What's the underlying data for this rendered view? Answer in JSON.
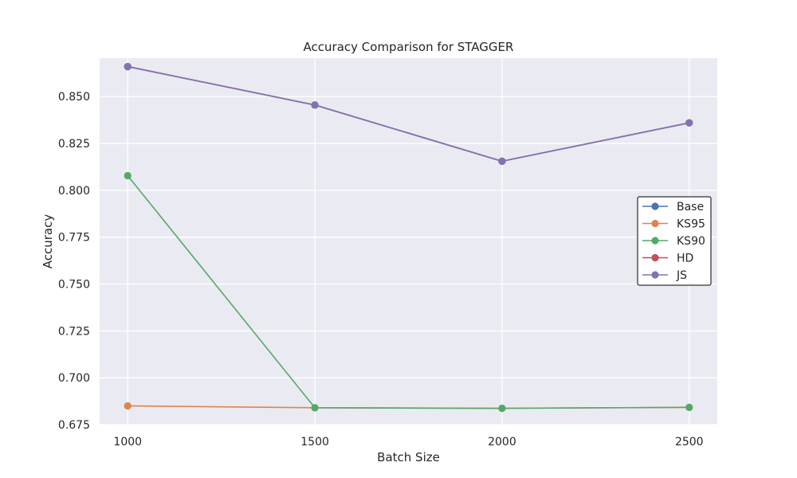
{
  "chart_data": {
    "type": "line",
    "title": "Accuracy Comparison for STAGGER",
    "xlabel": "Batch Size",
    "ylabel": "Accuracy",
    "x": [
      1000,
      1500,
      2000,
      2500
    ],
    "x_tick_labels": [
      "1000",
      "1500",
      "2000",
      "2500"
    ],
    "xlim": [
      925,
      2575
    ],
    "ylim": [
      0.675,
      0.8705
    ],
    "y_ticks": [
      0.675,
      0.7,
      0.725,
      0.75,
      0.775,
      0.8,
      0.825,
      0.85
    ],
    "y_tick_labels": [
      "0.675",
      "0.700",
      "0.725",
      "0.750",
      "0.775",
      "0.800",
      "0.825",
      "0.850"
    ],
    "grid": true,
    "legend_position": "center-right",
    "series": [
      {
        "name": "Base",
        "color": "#4c72b0",
        "values": [
          0.866,
          0.8455,
          0.8155,
          0.836
        ]
      },
      {
        "name": "KS95",
        "color": "#dd8452",
        "values": [
          0.685,
          0.684,
          0.6837,
          0.6842
        ]
      },
      {
        "name": "KS90",
        "color": "#55a868",
        "values": [
          0.8078,
          0.684,
          0.6837,
          0.6842
        ]
      },
      {
        "name": "HD",
        "color": "#c44e52",
        "values": [
          0.866,
          0.8455,
          0.8155,
          0.836
        ]
      },
      {
        "name": "JS",
        "color": "#8172b3",
        "values": [
          0.866,
          0.8455,
          0.8155,
          0.836
        ]
      }
    ]
  }
}
